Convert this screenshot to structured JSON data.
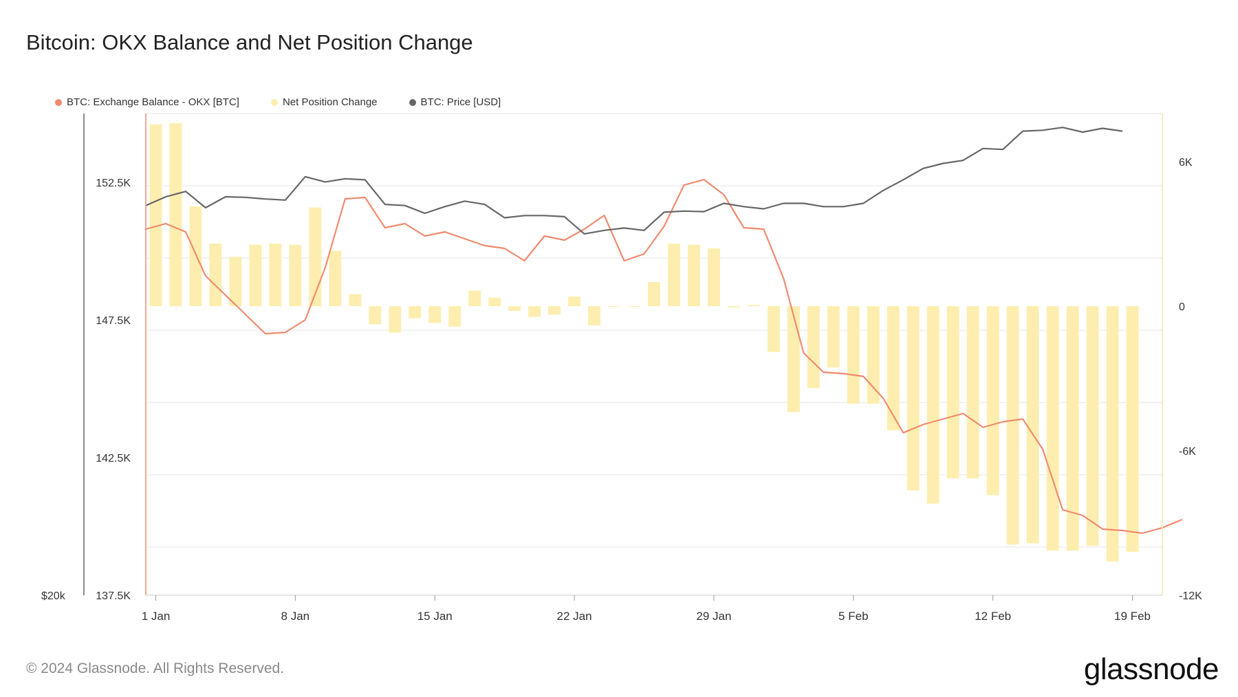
{
  "header": {
    "title": "Bitcoin: OKX Balance and Net Position Change"
  },
  "legend": [
    {
      "label": "BTC: Exchange Balance - OKX [BTC]",
      "color": "#f08a6e",
      "icon": "legend-dot"
    },
    {
      "label": "Net Position Change",
      "color": "#fdeeb0",
      "icon": "legend-dot"
    },
    {
      "label": "BTC: Price [USD]",
      "color": "#666666",
      "icon": "legend-dot"
    }
  ],
  "footer": {
    "copyright": "© 2024 Glassnode. All Rights Reserved.",
    "logo_text": "glassnode"
  },
  "chart_data": {
    "type": "bar+line",
    "title": "Bitcoin: OKX Balance and Net Position Change",
    "x_ticks": [
      {
        "label": "1 Jan",
        "day": 0
      },
      {
        "label": "8 Jan",
        "day": 7
      },
      {
        "label": "15 Jan",
        "day": 14
      },
      {
        "label": "22 Jan",
        "day": 21
      },
      {
        "label": "29 Jan",
        "day": 28
      },
      {
        "label": "5 Feb",
        "day": 35
      },
      {
        "label": "12 Feb",
        "day": 42
      },
      {
        "label": "19 Feb",
        "day": 49
      }
    ],
    "x_range": [
      -0.5,
      50.5
    ],
    "left_axis": {
      "range": [
        137500,
        155000
      ],
      "ticks": [
        {
          "label": "152.5K",
          "value": 152500
        },
        {
          "label": "147.5K",
          "value": 147500
        },
        {
          "label": "142.5K",
          "value": 142500
        },
        {
          "label": "137.5K",
          "value": 137500
        }
      ],
      "price_label": "$20k"
    },
    "right_axis": {
      "range": [
        -12000,
        8000
      ],
      "ticks": [
        {
          "label": "6K",
          "value": 6000
        },
        {
          "label": "0",
          "value": 0
        },
        {
          "label": "-6K",
          "value": -6000
        },
        {
          "label": "-12K",
          "value": -12000
        }
      ]
    },
    "series": [
      {
        "name": "BTC: Exchange Balance - OKX [BTC]",
        "type": "line",
        "axis": "left",
        "color": "#f08a6e",
        "start_day": -0.5,
        "values": [
          150800,
          151000,
          150700,
          149100,
          148400,
          147700,
          147000,
          147050,
          147500,
          149400,
          151900,
          151950,
          150850,
          151000,
          150550,
          150700,
          150450,
          150200,
          150100,
          149650,
          150550,
          150400,
          150800,
          151300,
          149650,
          149900,
          150900,
          152400,
          152600,
          152050,
          150850,
          150800,
          149000,
          146300,
          145600,
          145550,
          145450,
          144650,
          143400,
          143700,
          143900,
          144100,
          143600,
          143800,
          143900,
          142800,
          140600,
          140400,
          139900,
          139850,
          139750,
          139950,
          140250
        ]
      },
      {
        "name": "Net Position Change",
        "type": "bar",
        "axis": "right",
        "color": "#fdeeb0",
        "start_day": 0,
        "values": [
          7550,
          7600,
          4150,
          2600,
          2050,
          2550,
          2600,
          2550,
          4100,
          2300,
          500,
          -750,
          -1100,
          -500,
          -700,
          -850,
          650,
          350,
          -200,
          -450,
          -350,
          400,
          -800,
          0,
          0,
          1000,
          2600,
          2550,
          2400,
          -50,
          50,
          -1900,
          -4400,
          -3400,
          -2550,
          -4050,
          -4050,
          -5150,
          -7650,
          -8200,
          -7150,
          -7150,
          -7850,
          -9900,
          -9850,
          -10150,
          -10150,
          -9950,
          -10600,
          -10200
        ]
      },
      {
        "name": "BTC: Price [USD]",
        "type": "line",
        "axis": "price",
        "color": "#666666",
        "start_day": -0.5,
        "price_ref": {
          "label": "$20k",
          "value": 20000
        },
        "values": [
          44400,
          45200,
          45700,
          44200,
          45200,
          45150,
          45000,
          44900,
          47100,
          46600,
          46900,
          46800,
          44500,
          44400,
          43700,
          44300,
          44800,
          44500,
          43300,
          43500,
          43500,
          43400,
          41900,
          42200,
          42400,
          42200,
          43800,
          43900,
          43850,
          44600,
          44300,
          44100,
          44600,
          44600,
          44300,
          44300,
          44600,
          45800,
          46800,
          47900,
          48400,
          48700,
          49900,
          49800,
          51700,
          51800,
          52100,
          51600,
          52000,
          51700
        ]
      }
    ]
  }
}
